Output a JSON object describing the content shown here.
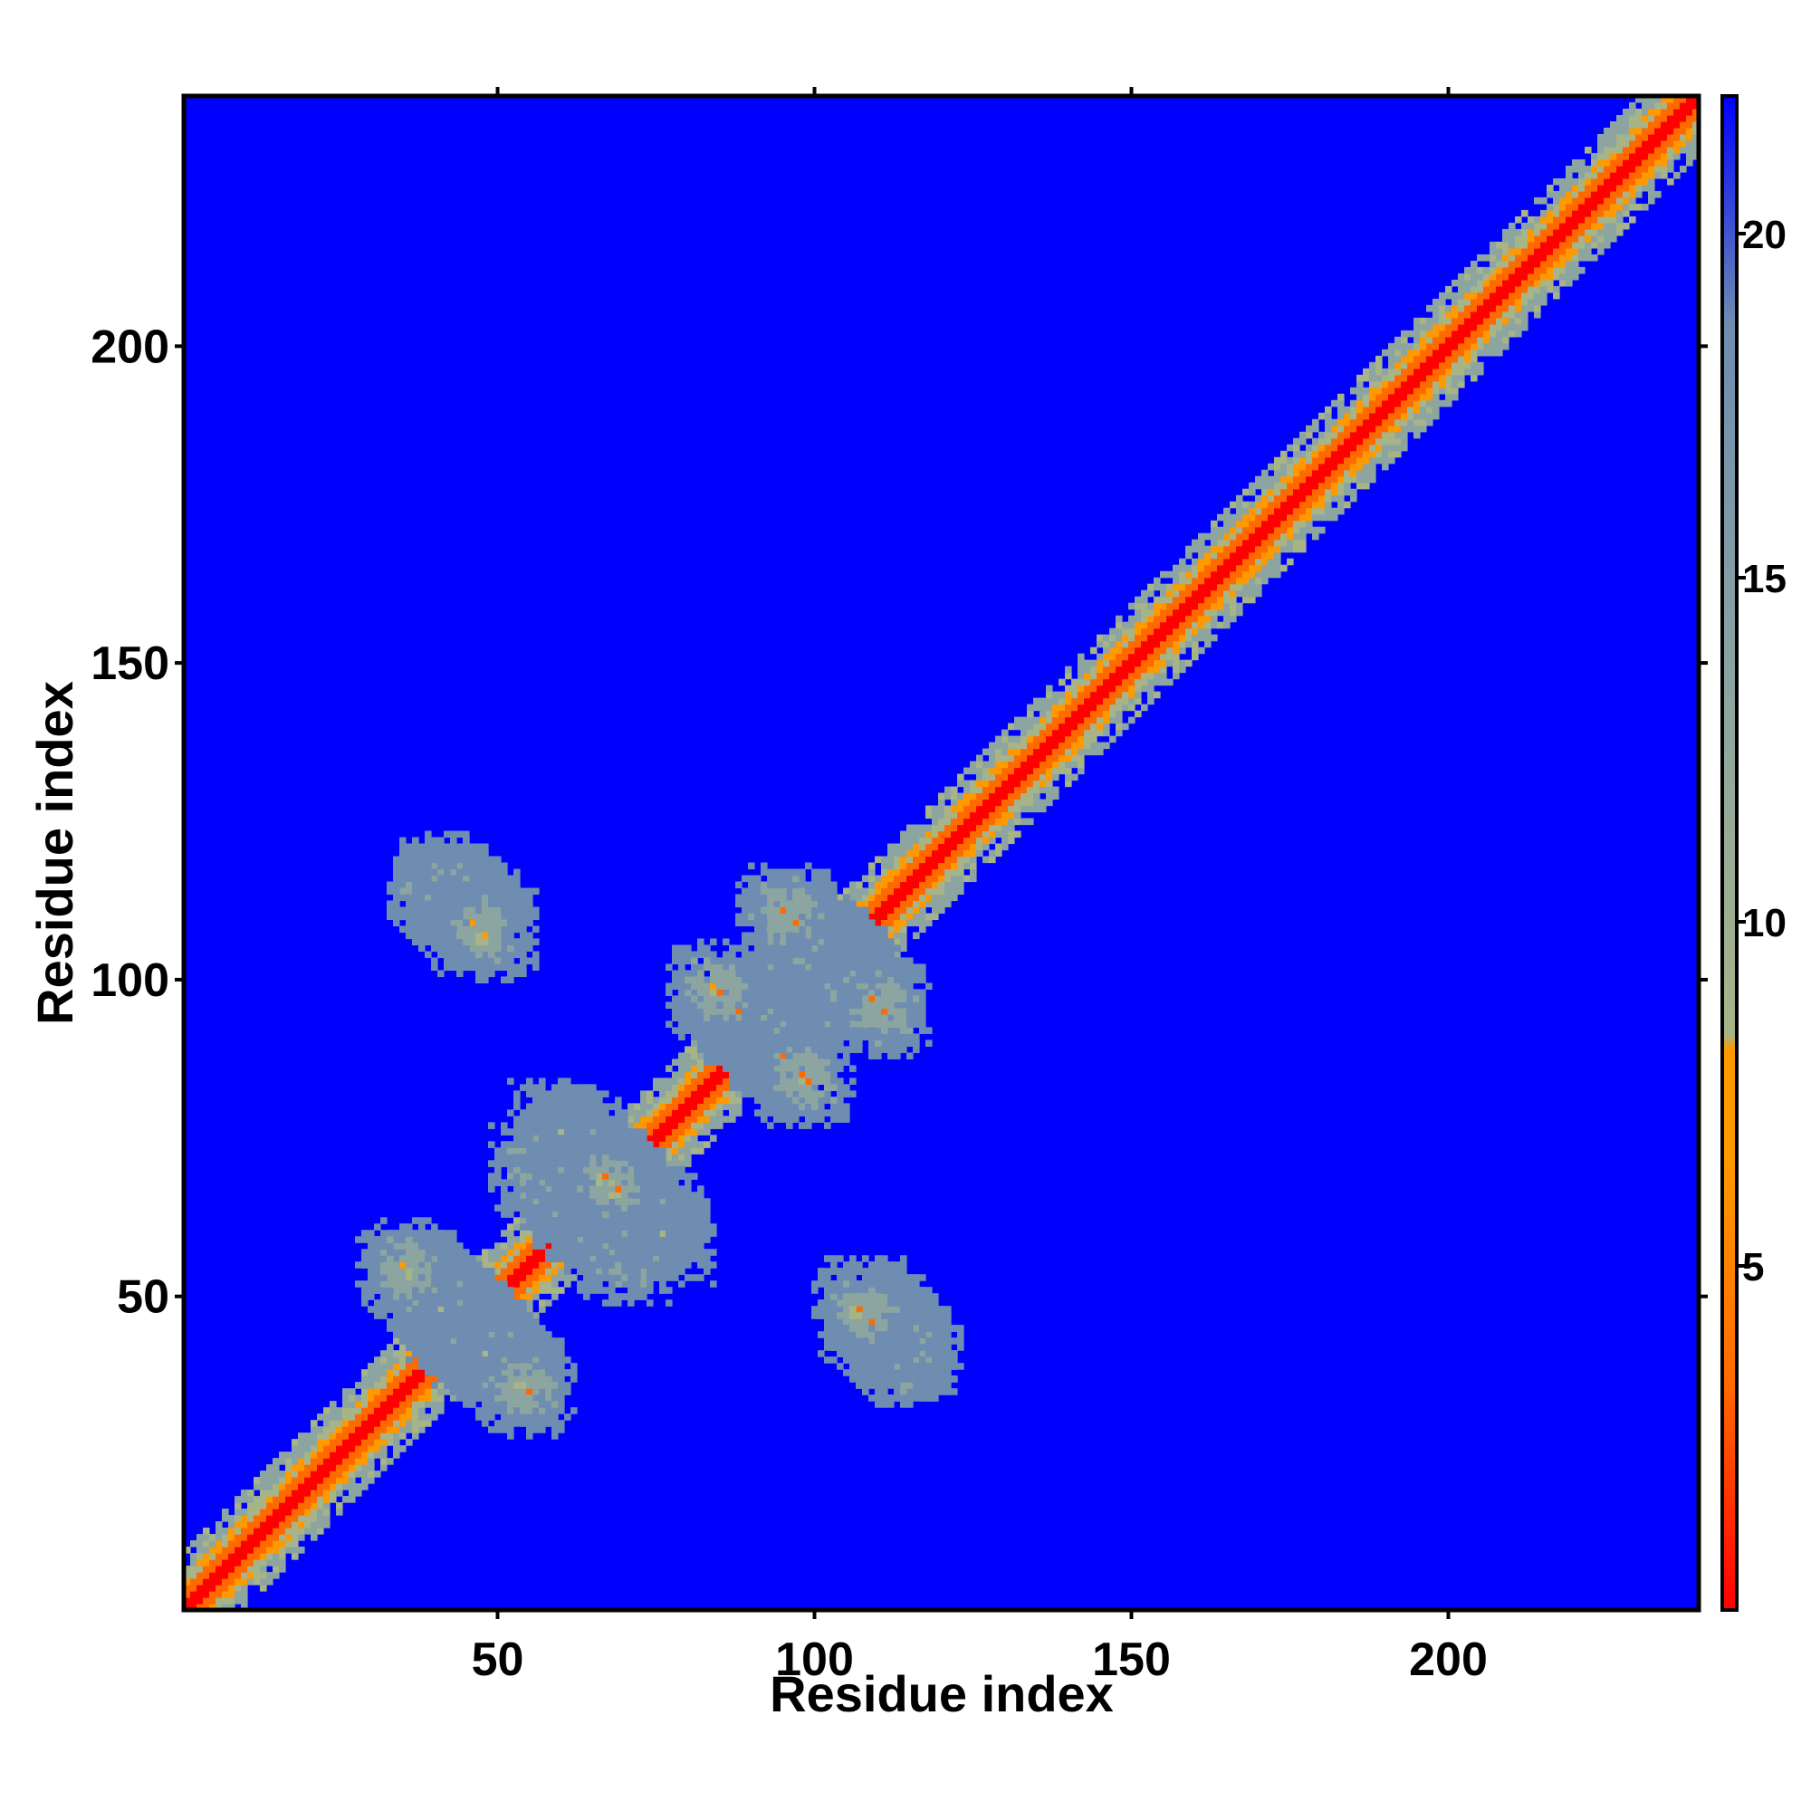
{
  "chart_data": {
    "type": "heatmap",
    "title": "",
    "xlabel": "Residue index",
    "ylabel": "Residue index",
    "xlim": [
      1,
      239
    ],
    "ylim": [
      1,
      239
    ],
    "x_ticks": [
      50,
      100,
      150,
      200
    ],
    "y_ticks": [
      50,
      100,
      150,
      200
    ],
    "x_tick_labels": [
      "50",
      "100",
      "150",
      "200"
    ],
    "y_tick_labels": [
      "50",
      "100",
      "150",
      "200"
    ],
    "colorbar": {
      "range": [
        0,
        22
      ],
      "ticks": [
        5,
        10,
        15,
        20
      ],
      "tick_labels": [
        "5",
        "10",
        "15",
        "20"
      ],
      "colors": [
        "#ff0000",
        "#ff6a00",
        "#ff9900",
        "#a7b487",
        "#8ca5a0",
        "#6e8db0",
        "#0000ff"
      ]
    },
    "background_color": "#0000ff",
    "diagonal_color": "#ff0000",
    "features": [
      {
        "type": "diagonal",
        "from": [
          1,
          1
        ],
        "to": [
          239,
          239
        ]
      },
      {
        "type": "antiparallel_contact",
        "center": [
          48,
          42
        ],
        "length": 14
      },
      {
        "type": "antiparallel_contact",
        "center": [
          66,
          61
        ],
        "length": 10
      },
      {
        "type": "antiparallel_contact",
        "center": [
          64,
          72
        ],
        "length": 10
      },
      {
        "type": "antiparallel_contact",
        "center": [
          94,
          89
        ],
        "length": 10
      },
      {
        "type": "antiparallel_contact",
        "center": [
          106,
          100
        ],
        "length": 10
      },
      {
        "type": "antiparallel_contact",
        "center": [
          112,
          45
        ],
        "length": 8
      },
      {
        "type": "antiparallel_contact",
        "center": [
          44,
          111
        ],
        "length": 8
      }
    ]
  }
}
